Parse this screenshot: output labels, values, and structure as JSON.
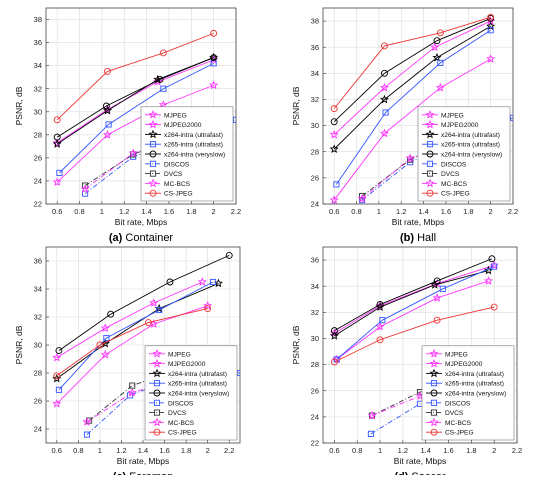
{
  "figure": {
    "series_names": [
      "MJPEG",
      "MJPEG2000",
      "x264-intra (ultrafast)",
      "x265-intra (ultrafast)",
      "x264-intra (veryslow)",
      "DISCOS",
      "DVCS",
      "MC-BCS",
      "CS-JPEG"
    ],
    "series_styles": [
      {
        "color": "#ff33ff",
        "marker": "star",
        "dash": "solid"
      },
      {
        "color": "#ff33ff",
        "marker": "star",
        "dash": "solid"
      },
      {
        "color": "#000000",
        "marker": "star",
        "dash": "solid"
      },
      {
        "color": "#3355ff",
        "marker": "square",
        "dash": "solid"
      },
      {
        "color": "#000000",
        "marker": "circle",
        "dash": "solid"
      },
      {
        "color": "#3355ff",
        "marker": "square",
        "dash": "dashdot"
      },
      {
        "color": "#333333",
        "marker": "square",
        "dash": "dashdot"
      },
      {
        "color": "#ff33ff",
        "marker": "star",
        "dash": "dashdot"
      },
      {
        "color": "#ee3333",
        "marker": "circle",
        "dash": "solid"
      }
    ]
  },
  "chart_data": [
    {
      "type": "line",
      "caption_letter": "(a)",
      "caption_text": "Container",
      "xlabel": "Bit rate, Mbps",
      "ylabel": "PSNR, dB",
      "xlim": [
        0.5,
        2.2
      ],
      "ylim": [
        22,
        39
      ],
      "xticks": [
        "0.6",
        "0.8",
        "1",
        "1.2",
        "1.4",
        "1.6",
        "1.8",
        "2",
        "2.2"
      ],
      "yticks": [
        "22",
        "24",
        "26",
        "28",
        "30",
        "32",
        "34",
        "36",
        "38"
      ],
      "grid": true,
      "legend_position": "bottom-right",
      "series": [
        {
          "name": "MJPEG",
          "x": [
            0.6,
            1.05,
            1.55,
            2.0
          ],
          "y": [
            23.9,
            28.0,
            30.6,
            32.3
          ]
        },
        {
          "name": "MJPEG2000",
          "x": [
            0.6,
            1.05,
            1.5,
            2.0
          ],
          "y": [
            27.3,
            30.2,
            32.6,
            34.5
          ]
        },
        {
          "name": "x264-intra (ultrafast)",
          "x": [
            0.6,
            1.05,
            1.5,
            2.0
          ],
          "y": [
            27.2,
            30.1,
            32.8,
            34.7
          ]
        },
        {
          "name": "x265-intra (ultrafast)",
          "x": [
            0.62,
            1.06,
            1.55,
            2.0
          ],
          "y": [
            24.7,
            28.9,
            32.0,
            34.2
          ]
        },
        {
          "name": "x264-intra (veryslow)",
          "x": [
            0.6,
            1.04,
            1.52,
            2.0
          ],
          "y": [
            27.8,
            30.5,
            32.8,
            34.7
          ]
        },
        {
          "name": "DISCOS",
          "x": [
            0.85,
            1.28,
            1.6,
            1.95,
            2.2
          ],
          "y": [
            22.9,
            26.1,
            27.3,
            28.3,
            29.3
          ]
        },
        {
          "name": "DVCS",
          "x": [
            0.85,
            1.28,
            1.6,
            1.95
          ],
          "y": [
            23.6,
            26.3,
            27.5,
            28.4
          ]
        },
        {
          "name": "MC-BCS",
          "x": [
            0.85,
            1.28,
            1.6,
            1.95
          ],
          "y": [
            23.3,
            26.4,
            27.4,
            28.2
          ]
        },
        {
          "name": "CS-JPEG",
          "x": [
            0.6,
            1.05,
            1.55,
            2.0
          ],
          "y": [
            29.3,
            33.5,
            35.1,
            36.8
          ]
        }
      ]
    },
    {
      "type": "line",
      "caption_letter": "(b)",
      "caption_text": "Hall",
      "xlabel": "Bit rate, Mbps",
      "ylabel": "PSNR, dB",
      "xlim": [
        0.5,
        2.2
      ],
      "ylim": [
        24,
        39
      ],
      "xticks": [
        "0.6",
        "0.8",
        "1",
        "1.2",
        "1.4",
        "1.6",
        "1.8",
        "2",
        "2.2"
      ],
      "yticks": [
        "24",
        "26",
        "28",
        "30",
        "32",
        "34",
        "36",
        "38"
      ],
      "grid": true,
      "legend_position": "bottom-right",
      "series": [
        {
          "name": "MJPEG",
          "x": [
            0.6,
            1.05,
            1.55,
            2.0
          ],
          "y": [
            24.3,
            29.4,
            32.9,
            35.1
          ]
        },
        {
          "name": "MJPEG2000",
          "x": [
            0.6,
            1.05,
            1.5,
            2.0
          ],
          "y": [
            29.3,
            32.9,
            36.0,
            38.0
          ]
        },
        {
          "name": "x264-intra (ultrafast)",
          "x": [
            0.6,
            1.05,
            1.52,
            2.0
          ],
          "y": [
            28.2,
            32.0,
            35.2,
            37.6
          ]
        },
        {
          "name": "x265-intra (ultrafast)",
          "x": [
            0.62,
            1.06,
            1.55,
            2.0
          ],
          "y": [
            25.5,
            31.0,
            34.8,
            37.3
          ]
        },
        {
          "name": "x264-intra (veryslow)",
          "x": [
            0.6,
            1.05,
            1.52,
            2.0
          ],
          "y": [
            30.3,
            34.0,
            36.5,
            38.2
          ]
        },
        {
          "name": "DISCOS",
          "x": [
            0.85,
            1.28,
            1.6,
            1.95,
            2.2
          ],
          "y": [
            24.3,
            27.2,
            28.4,
            29.6,
            30.6
          ]
        },
        {
          "name": "DVCS",
          "x": [
            0.85,
            1.28,
            1.6,
            1.95
          ],
          "y": [
            24.6,
            27.4,
            28.6,
            29.8
          ]
        },
        {
          "name": "MC-BCS",
          "x": [
            0.85,
            1.28,
            1.6,
            1.95
          ],
          "y": [
            24.4,
            27.5,
            28.5,
            29.7
          ]
        },
        {
          "name": "CS-JPEG",
          "x": [
            0.6,
            1.05,
            1.55,
            2.0
          ],
          "y": [
            31.3,
            36.1,
            37.1,
            38.3
          ]
        }
      ]
    },
    {
      "type": "line",
      "caption_letter": "(c)",
      "caption_text": "Foreman",
      "xlabel": "Bit rate, Mbps",
      "ylabel": "PSNR, dB",
      "xlim": [
        0.5,
        2.3
      ],
      "ylim": [
        23,
        37
      ],
      "xticks": [
        "0.6",
        "0.8",
        "1",
        "1.2",
        "1.4",
        "1.6",
        "1.8",
        "2",
        "2.2"
      ],
      "yticks": [
        "24",
        "26",
        "28",
        "30",
        "32",
        "34",
        "36"
      ],
      "grid": true,
      "legend_position": "bottom-right",
      "series": [
        {
          "name": "MJPEG",
          "x": [
            0.6,
            1.05,
            1.5,
            2.0
          ],
          "y": [
            25.8,
            29.3,
            31.5,
            32.8
          ]
        },
        {
          "name": "MJPEG2000",
          "x": [
            0.6,
            1.05,
            1.5,
            1.95
          ],
          "y": [
            29.1,
            31.2,
            33.0,
            34.5
          ]
        },
        {
          "name": "x264-intra (ultrafast)",
          "x": [
            0.6,
            1.05,
            1.55,
            2.1
          ],
          "y": [
            27.6,
            30.1,
            32.6,
            34.4
          ]
        },
        {
          "name": "x265-intra (ultrafast)",
          "x": [
            0.62,
            1.06,
            1.55,
            2.05
          ],
          "y": [
            26.8,
            30.5,
            32.5,
            34.5
          ]
        },
        {
          "name": "x264-intra (veryslow)",
          "x": [
            0.62,
            1.1,
            1.65,
            2.2
          ],
          "y": [
            29.6,
            32.2,
            34.5,
            36.4
          ]
        },
        {
          "name": "DISCOS",
          "x": [
            0.88,
            1.28,
            1.65,
            2.0,
            2.3
          ],
          "y": [
            23.6,
            26.4,
            27.5,
            28.1,
            28.0
          ]
        },
        {
          "name": "DVCS",
          "x": [
            0.9,
            1.3,
            1.7
          ],
          "y": [
            24.6,
            27.1,
            28.2
          ]
        },
        {
          "name": "MC-BCS",
          "x": [
            0.88,
            1.3,
            1.65,
            2.0
          ],
          "y": [
            24.5,
            26.6,
            27.4,
            28.0
          ]
        },
        {
          "name": "CS-JPEG",
          "x": [
            0.6,
            1.0,
            1.45,
            2.0
          ],
          "y": [
            27.8,
            30.0,
            31.6,
            32.6
          ]
        }
      ]
    },
    {
      "type": "line",
      "caption_letter": "(d)",
      "caption_text": "Soccer",
      "xlabel": "Bit rate, Mbps",
      "ylabel": "PSNR, dB",
      "xlim": [
        0.5,
        2.2
      ],
      "ylim": [
        22,
        37
      ],
      "xticks": [
        "0.6",
        "0.8",
        "1",
        "1.2",
        "1.4",
        "1.6",
        "1.8",
        "2",
        "2.2"
      ],
      "yticks": [
        "22",
        "24",
        "26",
        "28",
        "30",
        "32",
        "34",
        "36"
      ],
      "grid": true,
      "legend_position": "bottom-right",
      "series": [
        {
          "name": "MJPEG",
          "x": [
            0.62,
            1.0,
            1.5,
            1.95
          ],
          "y": [
            28.4,
            30.9,
            33.1,
            34.4
          ]
        },
        {
          "name": "MJPEG2000",
          "x": [
            0.6,
            1.0,
            1.5,
            2.0
          ],
          "y": [
            30.4,
            32.5,
            34.2,
            35.6
          ]
        },
        {
          "name": "x264-intra (ultrafast)",
          "x": [
            0.6,
            1.0,
            1.48,
            1.95
          ],
          "y": [
            30.2,
            32.4,
            34.1,
            35.2
          ]
        },
        {
          "name": "x265-intra (ultrafast)",
          "x": [
            0.62,
            1.02,
            1.55,
            2.0
          ],
          "y": [
            28.4,
            31.4,
            33.8,
            35.5
          ]
        },
        {
          "name": "x264-intra (veryslow)",
          "x": [
            0.6,
            1.0,
            1.5,
            1.98
          ],
          "y": [
            30.6,
            32.6,
            34.4,
            36.1
          ]
        },
        {
          "name": "DISCOS",
          "x": [
            0.92,
            1.35,
            1.7,
            2.1
          ],
          "y": [
            22.7,
            25.0,
            26.0,
            26.6
          ]
        },
        {
          "name": "DVCS",
          "x": [
            0.93,
            1.35,
            1.7,
            2.1
          ],
          "y": [
            24.1,
            25.9,
            26.6,
            27.2
          ]
        },
        {
          "name": "MC-BCS",
          "x": [
            0.93,
            1.35,
            1.7,
            2.1
          ],
          "y": [
            24.1,
            25.6,
            26.3,
            27.0
          ]
        },
        {
          "name": "CS-JPEG",
          "x": [
            0.6,
            1.0,
            1.5,
            2.0
          ],
          "y": [
            28.2,
            29.9,
            31.4,
            32.4
          ]
        }
      ]
    }
  ]
}
